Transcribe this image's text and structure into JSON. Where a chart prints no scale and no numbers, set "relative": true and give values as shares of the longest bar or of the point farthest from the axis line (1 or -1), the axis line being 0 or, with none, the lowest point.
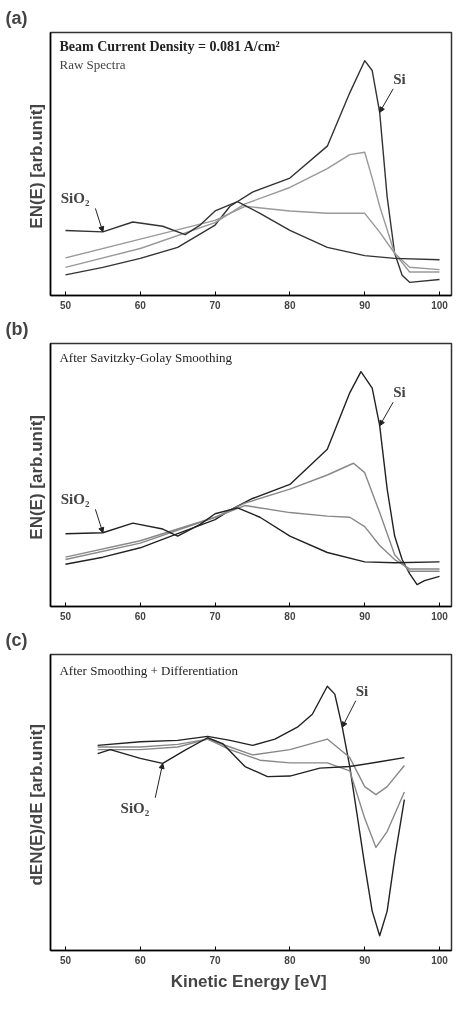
{
  "chart_data": [
    {
      "type": "line",
      "title": "(a)",
      "ylabel": "EN(E)  [arb.unit]",
      "relative": true,
      "xlim": [
        48,
        101.6
      ],
      "xticks": [
        50,
        60,
        70,
        80,
        90,
        100
      ],
      "tick_labels": "x",
      "grid": false,
      "annotations": [
        "Beam Current Density = 0.081 A/cm²",
        "Raw Spectra",
        "Si",
        "SiO₂"
      ],
      "series": [
        {
          "color": "#333333",
          "x": [
            50,
            55,
            60,
            65,
            70,
            72,
            75,
            80,
            85,
            88,
            90,
            91,
            92,
            93,
            94,
            95,
            96,
            100
          ],
          "values": [
            0.088,
            0.12,
            0.158,
            0.205,
            0.3,
            0.38,
            0.44,
            0.5,
            0.636,
            0.863,
            1.0,
            0.958,
            0.78,
            0.42,
            0.18,
            0.086,
            0.056,
            0.068
          ]
        },
        {
          "color": "#999999",
          "x": [
            50,
            60,
            70,
            74,
            80,
            85,
            88,
            90,
            91,
            92,
            94,
            96,
            100
          ],
          "values": [
            0.12,
            0.2,
            0.31,
            0.39,
            0.46,
            0.54,
            0.6,
            0.61,
            0.5,
            0.38,
            0.18,
            0.1,
            0.1
          ]
        },
        {
          "color": "#999999",
          "x": [
            50,
            60,
            70,
            74,
            80,
            85,
            90,
            92,
            94,
            96,
            100
          ],
          "values": [
            0.16,
            0.24,
            0.32,
            0.38,
            0.36,
            0.35,
            0.35,
            0.27,
            0.18,
            0.12,
            0.11
          ]
        },
        {
          "color": "#333333",
          "x": [
            50,
            55,
            59,
            63,
            66,
            68,
            70,
            73,
            76,
            80,
            85,
            90,
            94,
            100
          ],
          "values": [
            0.277,
            0.271,
            0.313,
            0.295,
            0.259,
            0.3,
            0.36,
            0.4,
            0.35,
            0.277,
            0.205,
            0.17,
            0.158,
            0.152
          ]
        }
      ]
    },
    {
      "type": "line",
      "title": "(b)",
      "ylabel": "EN(E)  [arb.unit]",
      "relative": true,
      "xlim": [
        48,
        101.6
      ],
      "xticks": [
        50,
        60,
        70,
        80,
        90,
        100
      ],
      "tick_labels": "x",
      "grid": false,
      "annotations": [
        "After Savitzky-Golay Smoothing",
        "Si",
        "SiO₂"
      ],
      "series": [
        {
          "color": "#222222",
          "x": [
            50,
            55,
            60,
            65,
            70,
            72,
            75,
            80,
            85,
            88,
            89.5,
            91,
            92,
            93,
            94,
            95,
            96,
            97,
            98,
            100
          ],
          "values": [
            0.18,
            0.21,
            0.25,
            0.31,
            0.37,
            0.41,
            0.46,
            0.52,
            0.67,
            0.91,
            1.0,
            0.93,
            0.77,
            0.5,
            0.3,
            0.2,
            0.14,
            0.093,
            0.11,
            0.128
          ]
        },
        {
          "color": "#888888",
          "x": [
            50,
            60,
            70,
            74,
            80,
            85,
            88.5,
            90,
            92,
            94,
            96,
            100
          ],
          "values": [
            0.2,
            0.27,
            0.38,
            0.44,
            0.5,
            0.56,
            0.61,
            0.57,
            0.4,
            0.22,
            0.15,
            0.15
          ]
        },
        {
          "color": "#888888",
          "x": [
            50,
            60,
            70,
            74,
            80,
            85,
            88,
            90,
            92,
            94,
            96,
            100
          ],
          "values": [
            0.21,
            0.28,
            0.38,
            0.43,
            0.4,
            0.385,
            0.38,
            0.34,
            0.26,
            0.2,
            0.16,
            0.16
          ]
        },
        {
          "color": "#222222",
          "x": [
            50,
            55,
            59,
            63,
            65,
            68,
            70,
            73,
            76,
            80,
            85,
            90,
            94,
            100
          ],
          "values": [
            0.31,
            0.314,
            0.355,
            0.33,
            0.3,
            0.35,
            0.395,
            0.42,
            0.38,
            0.3,
            0.23,
            0.19,
            0.186,
            0.19
          ]
        }
      ]
    },
    {
      "type": "line",
      "title": "(c)",
      "xlabel": "Kinetic Energy  [eV]",
      "ylabel": "dEN(E)/dE  [arb.unit]",
      "relative": true,
      "xlim": [
        48,
        101.6
      ],
      "xticks": [
        50,
        60,
        70,
        80,
        90,
        100
      ],
      "tick_labels": "x",
      "grid": false,
      "annotations": [
        "After Smoothing + Differentiation",
        "Si",
        "SiO₂"
      ],
      "series": [
        {
          "color": "#222222",
          "x": [
            54.3,
            60,
            65,
            69,
            72,
            75,
            78,
            81,
            83,
            85,
            86,
            87,
            88,
            89,
            90,
            91,
            92,
            93,
            94,
            95.3
          ],
          "values": [
            0.776,
            0.79,
            0.795,
            0.81,
            0.795,
            0.776,
            0.8,
            0.845,
            0.894,
            1.0,
            0.97,
            0.845,
            0.696,
            0.51,
            0.323,
            0.149,
            0.056,
            0.149,
            0.348,
            0.571
          ]
        },
        {
          "color": "#888888",
          "x": [
            54.3,
            60,
            65,
            69,
            72,
            75,
            80,
            85,
            88,
            90,
            91.5,
            93,
            95.3
          ],
          "values": [
            0.77,
            0.77,
            0.78,
            0.8,
            0.77,
            0.74,
            0.76,
            0.8,
            0.73,
            0.62,
            0.59,
            0.62,
            0.7
          ]
        },
        {
          "color": "#888888",
          "x": [
            54.3,
            60,
            65,
            69,
            72,
            76,
            80,
            85,
            88,
            90,
            91.5,
            93,
            95.3
          ],
          "values": [
            0.76,
            0.76,
            0.77,
            0.8,
            0.76,
            0.72,
            0.71,
            0.71,
            0.68,
            0.5,
            0.39,
            0.45,
            0.6
          ]
        },
        {
          "color": "#222222",
          "x": [
            54.3,
            56,
            60,
            63,
            66,
            69,
            71,
            74,
            77,
            80,
            84,
            88,
            92,
            95.3
          ],
          "values": [
            0.745,
            0.76,
            0.727,
            0.708,
            0.758,
            0.805,
            0.783,
            0.696,
            0.658,
            0.66,
            0.69,
            0.696,
            0.714,
            0.73
          ]
        }
      ]
    }
  ]
}
